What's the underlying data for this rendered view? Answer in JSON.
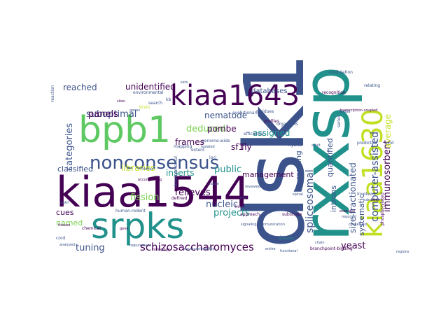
{
  "words": [
    {
      "text": "dsk1",
      "color": "#3b528b",
      "rot": 270
    },
    {
      "text": "kiaa1544",
      "color": "#440154",
      "rot": 0
    },
    {
      "text": "rxxsp",
      "color": "#21918c",
      "rot": 270
    },
    {
      "text": "bpb1",
      "color": "#5ec962",
      "rot": 0
    },
    {
      "text": "srpks",
      "color": "#21918c",
      "rot": 0
    },
    {
      "text": "kiaa1643",
      "color": "#440154",
      "rot": 0
    },
    {
      "text": "kiaa1630",
      "color": "#c2df23",
      "rot": 270
    },
    {
      "text": "nonconsensus",
      "color": "#3b528b",
      "rot": 0
    },
    {
      "text": "schizosaccharomyces",
      "color": "#440154",
      "rot": 0
    },
    {
      "text": "computer-assisted",
      "color": "#3b528b",
      "rot": 270
    },
    {
      "text": "spliceosomal",
      "color": "#3b528b",
      "rot": 270
    },
    {
      "text": "immunosorbent",
      "color": "#440154",
      "rot": 270
    },
    {
      "text": "size-fractionated",
      "color": "#3b528b",
      "rot": 270
    },
    {
      "text": "categories",
      "color": "#3b528b",
      "rot": 270
    },
    {
      "text": "fission",
      "color": "#7ad151",
      "rot": 0
    },
    {
      "text": "suboptimal",
      "color": "#3b528b",
      "rot": 0
    },
    {
      "text": "unidentified",
      "color": "#440154",
      "rot": 0
    },
    {
      "text": "nematode",
      "color": "#3b528b",
      "rot": 0
    },
    {
      "text": "deduced",
      "color": "#7ad151",
      "rot": 0
    },
    {
      "text": "inserts",
      "color": "#21918c",
      "rot": 0
    },
    {
      "text": "relieves",
      "color": "#440154",
      "rot": 0
    },
    {
      "text": "projects",
      "color": "#21918c",
      "rot": 0
    },
    {
      "text": "nucleic",
      "color": "#3b528b",
      "rot": 0
    },
    {
      "text": "tuning",
      "color": "#3b528b",
      "rot": 0
    },
    {
      "text": "panels",
      "color": "#440154",
      "rot": 0
    },
    {
      "text": "frames",
      "color": "#440154",
      "rot": 0
    },
    {
      "text": "pombe",
      "color": "#440154",
      "rot": 0
    },
    {
      "text": "libraries",
      "color": "#c2df23",
      "rot": 0
    },
    {
      "text": "yeast",
      "color": "#440154",
      "rot": 0
    },
    {
      "text": "sf1",
      "color": "#440154",
      "rot": 0
    },
    {
      "text": "fly",
      "color": "#440154",
      "rot": 0
    },
    {
      "text": "reached",
      "color": "#3b528b",
      "rot": 0
    },
    {
      "text": "assigned",
      "color": "#21918c",
      "rot": 0
    },
    {
      "text": "reading",
      "color": "#3b528b",
      "rot": 270
    },
    {
      "text": "quantified",
      "color": "#3b528b",
      "rot": 270
    },
    {
      "text": "average",
      "color": "#c2df23",
      "rot": 270
    },
    {
      "text": "systematic",
      "color": "#3b528b",
      "rot": 270
    },
    {
      "text": "introns",
      "color": "#3b528b",
      "rot": 270
    },
    {
      "text": "classified",
      "color": "#3b528b",
      "rot": 0
    },
    {
      "text": "public",
      "color": "#21918c",
      "rot": 0
    },
    {
      "text": "management",
      "color": "#440154",
      "rot": 0
    },
    {
      "text": "databases",
      "color": "#3b528b",
      "rot": 0
    },
    {
      "text": "cues",
      "color": "#440154",
      "rot": 0
    },
    {
      "text": "named",
      "color": "#7ad151",
      "rot": 0
    },
    {
      "text": "modulation",
      "color": "#3b528b",
      "rot": 0
    },
    {
      "text": "recognition",
      "color": "#440154",
      "rot": 0
    },
    {
      "text": "relating",
      "color": "#3b528b",
      "rot": 0
    },
    {
      "text": "profiles",
      "color": "#440154",
      "rot": 0
    },
    {
      "text": "residues",
      "color": "#3b528b",
      "rot": 0
    },
    {
      "text": "basis",
      "color": "#3b528b",
      "rot": 0
    },
    {
      "text": "environmental",
      "color": "#3b528b",
      "rot": 0
    },
    {
      "text": "evolutionarily",
      "color": "#3b528b",
      "rot": 0
    },
    {
      "text": "organisms",
      "color": "#3b528b",
      "rot": 0
    },
    {
      "text": "efficiency",
      "color": "#3b528b",
      "rot": 0
    },
    {
      "text": "mapping",
      "color": "#3b528b",
      "rot": 0
    },
    {
      "text": "extent",
      "color": "#3b528b",
      "rot": 0
    },
    {
      "text": "genome-wide",
      "color": "#3b528b",
      "rot": 0
    },
    {
      "text": "loci",
      "color": "#3b528b",
      "rot": 0
    },
    {
      "text": "clones",
      "color": "#3b528b",
      "rot": 0
    },
    {
      "text": "accumulating",
      "color": "#440154",
      "rot": 0
    },
    {
      "text": "defined",
      "color": "#440154",
      "rot": 0
    },
    {
      "text": "liver",
      "color": "#440154",
      "rot": 0
    },
    {
      "text": "approach",
      "color": "#440154",
      "rot": 0
    },
    {
      "text": "substrate",
      "color": "#440154",
      "rot": 0
    },
    {
      "text": "revealed",
      "color": "#3b528b",
      "rot": 0
    },
    {
      "text": "human-rodent",
      "color": "#3b528b",
      "rot": 0
    },
    {
      "text": "chemical",
      "color": "#440154",
      "rot": 0
    },
    {
      "text": "signaling/communication",
      "color": "#3b528b",
      "rot": 0
    },
    {
      "text": "conserved",
      "color": "#3b528b",
      "rot": 0
    },
    {
      "text": "branchpoint-binding",
      "color": "#440154",
      "rot": 0
    },
    {
      "text": "structure/mobility",
      "color": "#3b528b",
      "rot": 0
    },
    {
      "text": "products",
      "color": "#21918c",
      "rot": 0
    },
    {
      "text": "chain",
      "color": "#3b528b",
      "rot": 0
    },
    {
      "text": "entire",
      "color": "#3b528b",
      "rot": 0
    },
    {
      "text": "functional",
      "color": "#3b528b",
      "rot": 0
    },
    {
      "text": "fetal",
      "color": "#440154",
      "rot": 0
    },
    {
      "text": "phosphorylated",
      "color": "#440154",
      "rot": 270
    },
    {
      "text": "kb",
      "color": "#3b528b",
      "rot": 0
    },
    {
      "text": "search",
      "color": "#3b528b",
      "rot": 0
    },
    {
      "text": "brain",
      "color": "#c2df23",
      "rot": 0
    },
    {
      "text": "genes",
      "color": "#3b528b",
      "rot": 0
    },
    {
      "text": "sites",
      "color": "#440154",
      "rot": 0
    },
    {
      "text": "cord",
      "color": "#3b528b",
      "rot": 0
    },
    {
      "text": "analyzed",
      "color": "#3b528b",
      "rot": 0
    },
    {
      "text": "homology",
      "color": "#440154",
      "rot": 0
    },
    {
      "text": "requirement",
      "color": "#3b528b",
      "rot": 0
    },
    {
      "text": "predicted",
      "color": "#3b528b",
      "rot": 0
    },
    {
      "text": "cdna",
      "color": "#3b528b",
      "rot": 0
    },
    {
      "text": "essential",
      "color": "#440154",
      "rot": 0
    },
    {
      "text": "required",
      "color": "#3b528b",
      "rot": 0
    },
    {
      "text": "motif",
      "color": "#3b528b",
      "rot": 0
    },
    {
      "text": "tissues",
      "color": "#440154",
      "rot": 0
    },
    {
      "text": "regions",
      "color": "#3b528b",
      "rot": 0
    },
    {
      "text": "transcription-coupled",
      "color": "#440154",
      "rot": 0
    },
    {
      "text": "nuclear",
      "color": "#3b528b",
      "rot": 0
    },
    {
      "text": "hybrid",
      "color": "#3b528b",
      "rot": 0
    },
    {
      "text": "spinal",
      "color": "#3b528b",
      "rot": 0
    },
    {
      "text": "cause",
      "color": "#3b528b",
      "rot": 0
    },
    {
      "text": "reaction",
      "color": "#3b528b",
      "rot": 270
    },
    {
      "text": "series",
      "color": "#3b528b",
      "rot": 270
    },
    {
      "text": "acid",
      "color": "#3b528b",
      "rot": 0
    },
    {
      "text": "adult",
      "color": "#3b528b",
      "rot": 0
    },
    {
      "text": "involved",
      "color": "#3b528b",
      "rot": 0
    },
    {
      "text": "protein",
      "color": "#3b528b",
      "rot": 0
    },
    {
      "text": "sets",
      "color": "#3b528b",
      "rot": 0
    },
    {
      "text": "developmental",
      "color": "#3b528b",
      "rot": 270
    },
    {
      "text": "isolated",
      "color": "#3b528b",
      "rot": 0
    },
    {
      "text": "rna",
      "color": "#3b528b",
      "rot": 0
    },
    {
      "text": "gene",
      "color": "#440154",
      "rot": 0
    }
  ]
}
